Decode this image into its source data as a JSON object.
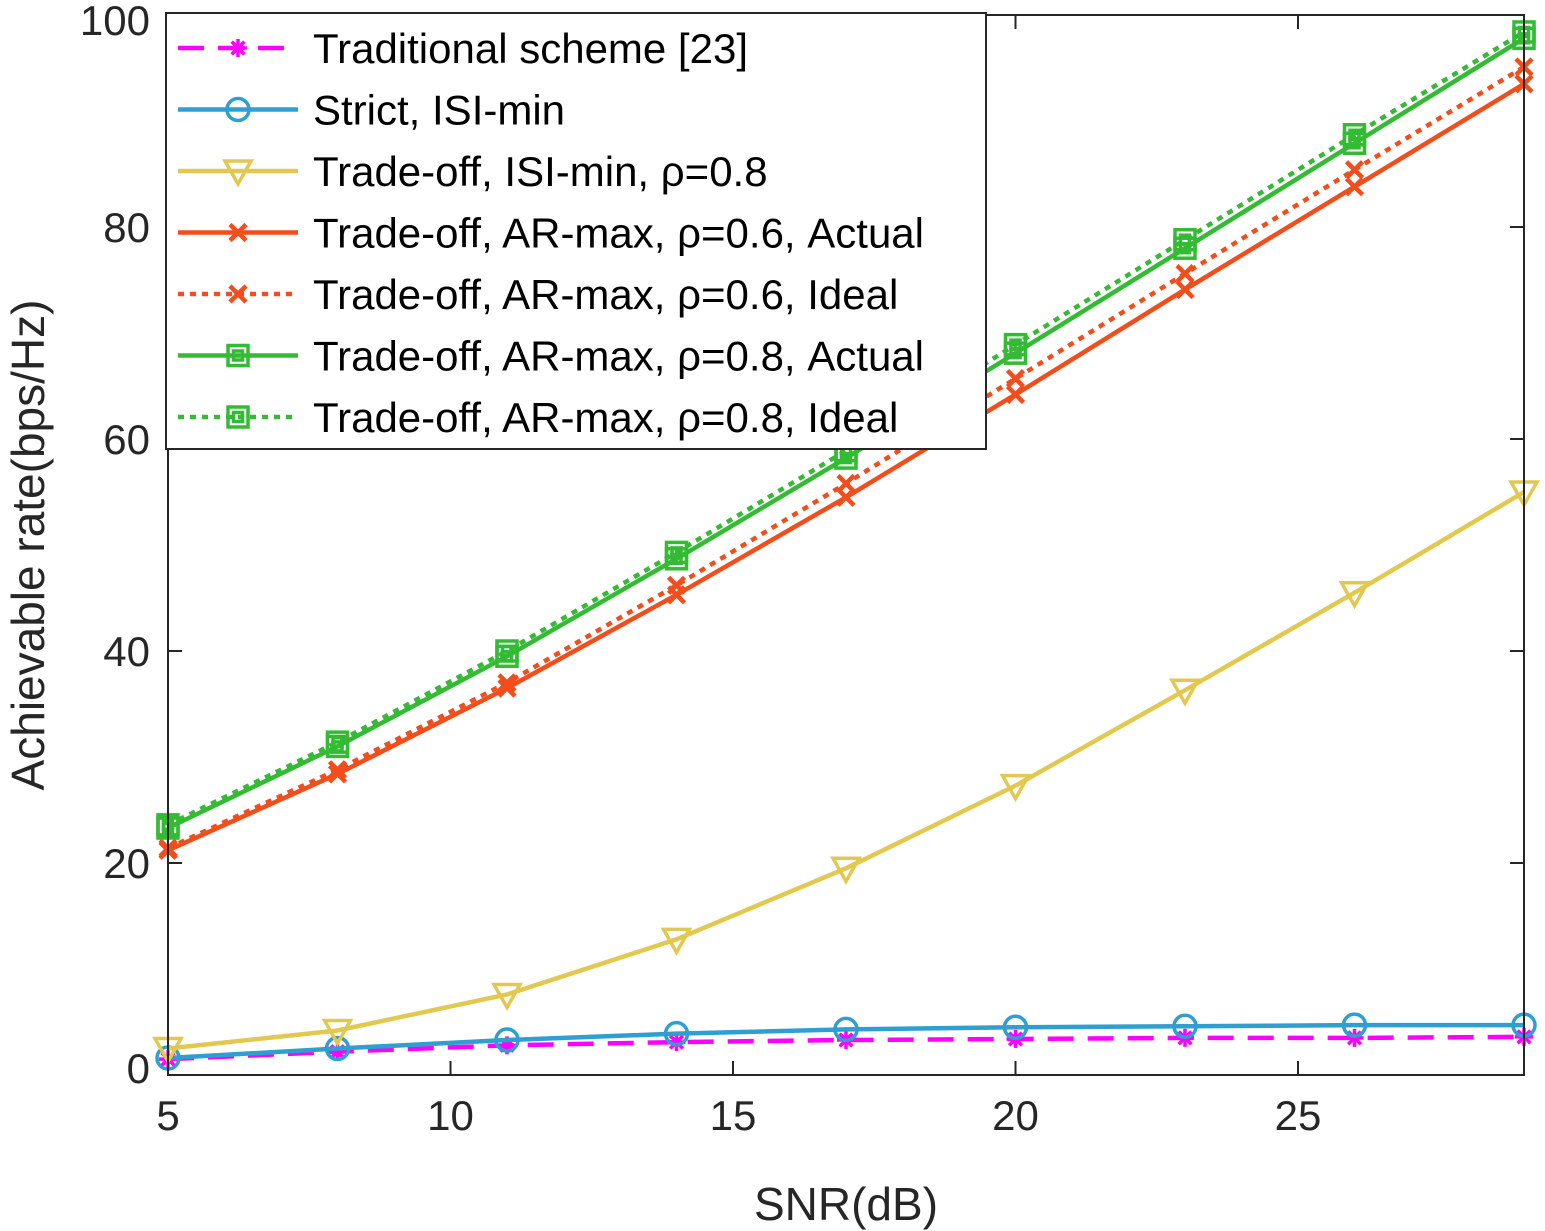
{
  "chart_data": {
    "type": "line",
    "title": "",
    "xlabel": "SNR(dB)",
    "ylabel": "Achievable rate(bps/Hz)",
    "xlim": [
      5,
      29
    ],
    "ylim": [
      0,
      100
    ],
    "xticks": [
      "5",
      "10",
      "15",
      "20",
      "25"
    ],
    "yticks": [
      "0",
      "20",
      "40",
      "60",
      "80",
      "100"
    ],
    "grid": false,
    "legend_position": "top-left",
    "x": [
      5,
      8,
      11,
      14,
      17,
      20,
      23,
      26,
      29
    ],
    "series": [
      {
        "name": "Traditional scheme [23]",
        "color": "#ff00ff",
        "line": "dashed",
        "marker": "asterisk",
        "values": [
          1.5,
          2.2,
          2.8,
          3.1,
          3.3,
          3.4,
          3.5,
          3.5,
          3.6
        ]
      },
      {
        "name": "Strict, ISI-min",
        "color": "#2e9fd0",
        "line": "solid",
        "marker": "circle",
        "values": [
          1.6,
          2.5,
          3.3,
          3.9,
          4.3,
          4.5,
          4.6,
          4.7,
          4.7
        ]
      },
      {
        "name": "Trade-off, ISI-min, ρ=0.8",
        "color": "#e3c850",
        "line": "solid",
        "marker": "triangle-down",
        "values": [
          2.5,
          4.2,
          7.6,
          12.8,
          19.5,
          27.3,
          36.3,
          45.5,
          55.0
        ]
      },
      {
        "name": "Trade-off, AR-max, ρ=0.6, Actual",
        "color": "#f24d1a",
        "line": "solid",
        "marker": "x",
        "values": [
          21.2,
          28.4,
          36.5,
          45.3,
          54.5,
          64.2,
          74.1,
          83.8,
          93.5
        ]
      },
      {
        "name": "Trade-off, AR-max, ρ=0.6, Ideal",
        "color": "#f24d1a",
        "line": "dotted",
        "marker": "x",
        "values": [
          21.4,
          28.8,
          37.0,
          46.2,
          55.8,
          65.7,
          75.6,
          85.4,
          95.1
        ]
      },
      {
        "name": "Trade-off, AR-max, ρ=0.8, Actual",
        "color": "#33bb33",
        "line": "solid",
        "marker": "square",
        "values": [
          23.3,
          31.0,
          39.5,
          48.7,
          58.2,
          68.1,
          78.0,
          87.9,
          97.8
        ]
      },
      {
        "name": "Trade-off, AR-max, ρ=0.8, Ideal",
        "color": "#33bb33",
        "line": "dotted",
        "marker": "square",
        "values": [
          23.6,
          31.4,
          40.0,
          49.3,
          58.9,
          68.9,
          78.8,
          88.7,
          98.4
        ]
      }
    ]
  }
}
